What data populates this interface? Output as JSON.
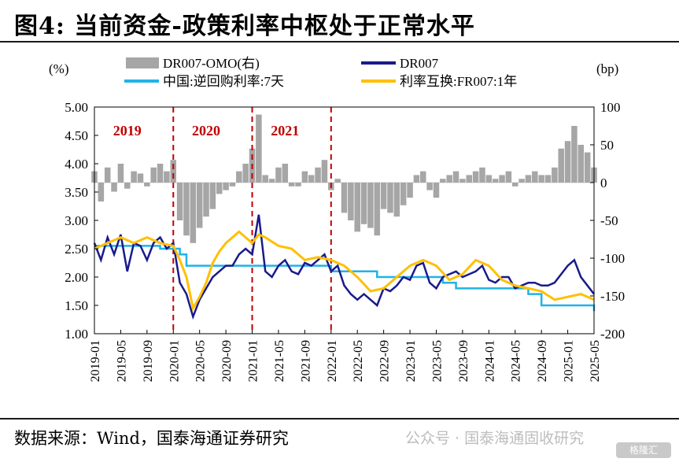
{
  "title": "图4:  当前资金-政策利率中枢处于正常水平",
  "source": "数据来源：Wind，国泰海通证券研究",
  "watermark": "公众号 · 国泰海通固收研究",
  "watermark_logo": "格隆汇",
  "chart_data": {
    "type": "line",
    "left_unit": "(%)",
    "right_unit": "(bp)",
    "ylim_left": [
      1.0,
      5.0
    ],
    "yticks_left": [
      "5.00",
      "4.50",
      "4.00",
      "3.50",
      "3.00",
      "2.50",
      "2.00",
      "1.50",
      "1.00"
    ],
    "ylim_right": [
      -200,
      100
    ],
    "yticks_right": [
      "100",
      "50",
      "0",
      "-50",
      "-100",
      "-150",
      "-200"
    ],
    "xlim": [
      "2019-01",
      "2025-05"
    ],
    "xticks": [
      "2019-01",
      "2019-05",
      "2019-09",
      "2020-01",
      "2020-05",
      "2020-09",
      "2021-01",
      "2021-05",
      "2021-09",
      "2022-01",
      "2022-05",
      "2022-09",
      "2023-01",
      "2023-05",
      "2023-09",
      "2024-01",
      "2024-05",
      "2024-09",
      "2025-01",
      "2025-05"
    ],
    "year_markers": [
      {
        "label": "2019",
        "x": "2019-06"
      },
      {
        "label": "2020",
        "x": "2020-06"
      },
      {
        "label": "2021",
        "x": "2021-06"
      }
    ],
    "dividers": [
      "2020-01",
      "2021-01",
      "2022-01"
    ],
    "colors": {
      "spread": "#a6a6a6",
      "dr007": "#1a1a8c",
      "policy": "#1fb3e6",
      "swap": "#ffc000",
      "divider": "#c00000",
      "year_label": "#c00000"
    },
    "series": [
      {
        "name": "DR007-OMO(右)",
        "axis": "right",
        "kind": "bar",
        "x": [
          "2019-01",
          "2019-02",
          "2019-03",
          "2019-04",
          "2019-05",
          "2019-06",
          "2019-07",
          "2019-08",
          "2019-09",
          "2019-10",
          "2019-11",
          "2019-12",
          "2020-01",
          "2020-02",
          "2020-03",
          "2020-04",
          "2020-05",
          "2020-06",
          "2020-07",
          "2020-08",
          "2020-09",
          "2020-10",
          "2020-11",
          "2020-12",
          "2021-01",
          "2021-02",
          "2021-03",
          "2021-04",
          "2021-05",
          "2021-06",
          "2021-07",
          "2021-08",
          "2021-09",
          "2021-10",
          "2021-11",
          "2021-12",
          "2022-01",
          "2022-02",
          "2022-03",
          "2022-04",
          "2022-05",
          "2022-06",
          "2022-07",
          "2022-08",
          "2022-09",
          "2022-10",
          "2022-11",
          "2022-12",
          "2023-01",
          "2023-02",
          "2023-03",
          "2023-04",
          "2023-05",
          "2023-06",
          "2023-07",
          "2023-08",
          "2023-09",
          "2023-10",
          "2023-11",
          "2023-12",
          "2024-01",
          "2024-02",
          "2024-03",
          "2024-04",
          "2024-05",
          "2024-06",
          "2024-07",
          "2024-08",
          "2024-09",
          "2024-10",
          "2024-11",
          "2024-12",
          "2025-01",
          "2025-02",
          "2025-03",
          "2025-04",
          "2025-05"
        ],
        "values": [
          15,
          -25,
          20,
          -12,
          25,
          -8,
          15,
          12,
          -5,
          20,
          25,
          15,
          30,
          -50,
          -70,
          -80,
          -60,
          -45,
          -35,
          -15,
          -10,
          -5,
          15,
          25,
          45,
          90,
          10,
          5,
          20,
          25,
          -5,
          -5,
          15,
          10,
          20,
          30,
          -10,
          5,
          -40,
          -50,
          -65,
          -55,
          -60,
          -70,
          -35,
          -40,
          -45,
          -30,
          -20,
          10,
          15,
          -10,
          -20,
          5,
          10,
          15,
          5,
          10,
          15,
          20,
          10,
          5,
          10,
          15,
          -5,
          5,
          10,
          15,
          10,
          10,
          20,
          45,
          55,
          75,
          50,
          40,
          20
        ]
      },
      {
        "name": "DR007",
        "axis": "left",
        "kind": "line",
        "x": [
          "2019-01",
          "2019-02",
          "2019-03",
          "2019-04",
          "2019-05",
          "2019-06",
          "2019-07",
          "2019-08",
          "2019-09",
          "2019-10",
          "2019-11",
          "2019-12",
          "2020-01",
          "2020-02",
          "2020-03",
          "2020-04",
          "2020-05",
          "2020-06",
          "2020-07",
          "2020-08",
          "2020-09",
          "2020-10",
          "2020-11",
          "2020-12",
          "2021-01",
          "2021-02",
          "2021-03",
          "2021-04",
          "2021-05",
          "2021-06",
          "2021-07",
          "2021-08",
          "2021-09",
          "2021-10",
          "2021-11",
          "2021-12",
          "2022-01",
          "2022-02",
          "2022-03",
          "2022-04",
          "2022-05",
          "2022-06",
          "2022-07",
          "2022-08",
          "2022-09",
          "2022-10",
          "2022-11",
          "2022-12",
          "2023-01",
          "2023-02",
          "2023-03",
          "2023-04",
          "2023-05",
          "2023-06",
          "2023-07",
          "2023-08",
          "2023-09",
          "2023-10",
          "2023-11",
          "2023-12",
          "2024-01",
          "2024-02",
          "2024-03",
          "2024-04",
          "2024-05",
          "2024-06",
          "2024-07",
          "2024-08",
          "2024-09",
          "2024-10",
          "2024-11",
          "2024-12",
          "2025-01",
          "2025-02",
          "2025-03",
          "2025-04",
          "2025-05"
        ],
        "values": [
          2.6,
          2.3,
          2.7,
          2.4,
          2.75,
          2.1,
          2.6,
          2.55,
          2.3,
          2.6,
          2.7,
          2.5,
          2.6,
          1.9,
          1.7,
          1.3,
          1.6,
          1.8,
          2.0,
          2.1,
          2.2,
          2.2,
          2.4,
          2.5,
          2.4,
          3.1,
          2.1,
          2.0,
          2.2,
          2.3,
          2.1,
          2.05,
          2.25,
          2.2,
          2.3,
          2.4,
          2.1,
          2.2,
          1.85,
          1.7,
          1.6,
          1.7,
          1.6,
          1.5,
          1.8,
          1.75,
          1.85,
          2.0,
          1.95,
          2.2,
          2.25,
          1.9,
          1.8,
          2.0,
          2.05,
          2.1,
          2.0,
          2.05,
          2.1,
          2.2,
          1.95,
          1.9,
          2.0,
          2.0,
          1.8,
          1.85,
          1.9,
          1.9,
          1.85,
          1.85,
          1.9,
          2.05,
          2.2,
          2.3,
          2.0,
          1.85,
          1.7
        ]
      },
      {
        "name": "中国:逆回购利率:7天",
        "axis": "left",
        "kind": "step",
        "x": [
          "2019-01",
          "2019-11",
          "2020-02",
          "2020-03",
          "2022-01",
          "2022-08",
          "2023-06",
          "2023-08",
          "2024-07",
          "2024-09",
          "2025-05"
        ],
        "values": [
          2.55,
          2.5,
          2.4,
          2.2,
          2.1,
          2.0,
          1.9,
          1.8,
          1.7,
          1.5,
          1.4
        ]
      },
      {
        "name": "利率互换:FR007:1年",
        "axis": "left",
        "kind": "line",
        "x": [
          "2019-01",
          "2019-03",
          "2019-05",
          "2019-07",
          "2019-09",
          "2019-11",
          "2020-01",
          "2020-02",
          "2020-03",
          "2020-04",
          "2020-05",
          "2020-06",
          "2020-07",
          "2020-08",
          "2020-09",
          "2020-10",
          "2020-11",
          "2020-12",
          "2021-01",
          "2021-02",
          "2021-03",
          "2021-05",
          "2021-07",
          "2021-09",
          "2021-11",
          "2022-01",
          "2022-03",
          "2022-05",
          "2022-07",
          "2022-09",
          "2022-11",
          "2023-01",
          "2023-03",
          "2023-05",
          "2023-07",
          "2023-09",
          "2023-11",
          "2024-01",
          "2024-03",
          "2024-05",
          "2024-07",
          "2024-09",
          "2024-11",
          "2025-01",
          "2025-03",
          "2025-05"
        ],
        "values": [
          2.5,
          2.6,
          2.7,
          2.6,
          2.7,
          2.6,
          2.55,
          2.3,
          2.0,
          1.45,
          1.65,
          1.9,
          2.25,
          2.45,
          2.6,
          2.7,
          2.8,
          2.7,
          2.6,
          2.75,
          2.7,
          2.55,
          2.5,
          2.3,
          2.35,
          2.3,
          2.2,
          2.0,
          1.75,
          1.8,
          2.0,
          2.2,
          2.3,
          2.2,
          1.95,
          2.05,
          2.3,
          2.2,
          1.95,
          1.85,
          1.8,
          1.75,
          1.6,
          1.65,
          1.7,
          1.6
        ]
      }
    ]
  }
}
